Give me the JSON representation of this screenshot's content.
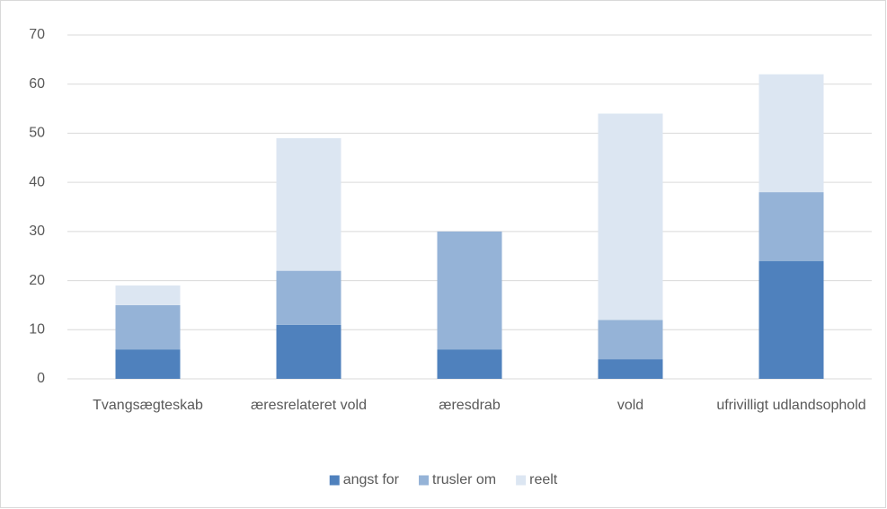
{
  "chart_data": {
    "type": "stacked_bar",
    "categories": [
      "Tvangsægteskab",
      "æresrelateret vold",
      "æresdrab",
      "vold",
      "ufrivilligt udlandsophold"
    ],
    "series": [
      {
        "name": "angst for",
        "color": "#4f81bd",
        "values": [
          6,
          11,
          6,
          4,
          24
        ]
      },
      {
        "name": "trusler om",
        "color": "#95b3d7",
        "values": [
          9,
          11,
          24,
          8,
          14
        ]
      },
      {
        "name": "reelt",
        "color": "#dce6f2",
        "values": [
          4,
          27,
          0,
          42,
          24
        ]
      }
    ],
    "ylim": [
      0,
      70
    ],
    "yticks": [
      0,
      10,
      20,
      30,
      40,
      50,
      60,
      70
    ],
    "grid": true,
    "legend": "bottom"
  }
}
